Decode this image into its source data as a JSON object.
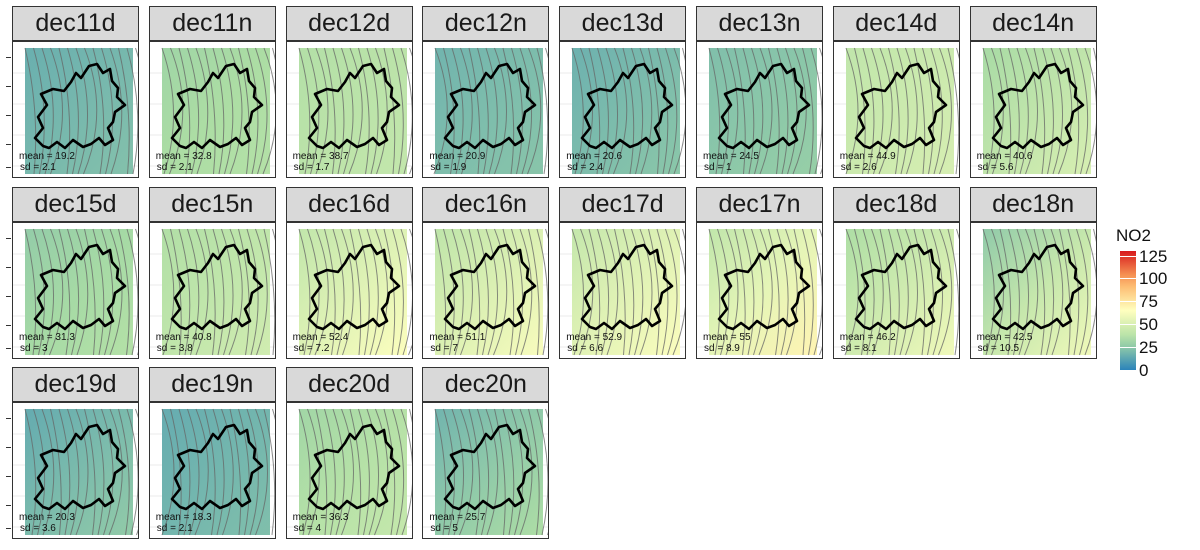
{
  "chart_data": {
    "type": "heatmap",
    "description_level": "faceted contour maps",
    "facets": [
      {
        "label": "dec11d",
        "mean": "mean = 19.2",
        "sd": "sd = 2.1",
        "avg": 19.2
      },
      {
        "label": "dec11n",
        "mean": "mean = 32.8",
        "sd": "sd = 2.1",
        "avg": 32.8
      },
      {
        "label": "dec12d",
        "mean": "mean = 38.7",
        "sd": "sd = 1.7",
        "avg": 38.7
      },
      {
        "label": "dec12n",
        "mean": "mean = 20.9",
        "sd": "sd = 1.9",
        "avg": 20.9
      },
      {
        "label": "dec13d",
        "mean": "mean = 20.6",
        "sd": "sd = 2.4",
        "avg": 20.6
      },
      {
        "label": "dec13n",
        "mean": "mean = 24.5",
        "sd": "sd = 1",
        "avg": 24.5
      },
      {
        "label": "dec14d",
        "mean": "mean = 44.9",
        "sd": "sd = 2.6",
        "avg": 44.9
      },
      {
        "label": "dec14n",
        "mean": "mean = 40.6",
        "sd": "sd = 5.6",
        "avg": 40.6
      },
      {
        "label": "dec15d",
        "mean": "mean = 31.3",
        "sd": "sd = 3",
        "avg": 31.3
      },
      {
        "label": "dec15n",
        "mean": "mean = 40.8",
        "sd": "sd = 3.8",
        "avg": 40.8
      },
      {
        "label": "dec16d",
        "mean": "mean = 52.4",
        "sd": "sd = 7.2",
        "avg": 52.4
      },
      {
        "label": "dec16n",
        "mean": "mean = 51.1",
        "sd": "sd = 7",
        "avg": 51.1
      },
      {
        "label": "dec17d",
        "mean": "mean = 52.9",
        "sd": "sd = 6.6",
        "avg": 52.9
      },
      {
        "label": "dec17n",
        "mean": "mean = 55",
        "sd": "sd = 8.9",
        "avg": 55
      },
      {
        "label": "dec18d",
        "mean": "mean = 46.2",
        "sd": "sd = 8.1",
        "avg": 46.2
      },
      {
        "label": "dec18n",
        "mean": "mean = 42.5",
        "sd": "sd = 10.5",
        "avg": 42.5
      },
      {
        "label": "dec19d",
        "mean": "mean = 20.3",
        "sd": "sd = 3.6",
        "avg": 20.3
      },
      {
        "label": "dec19n",
        "mean": "mean = 18.3",
        "sd": "sd = 2.1",
        "avg": 18.3
      },
      {
        "label": "dec20d",
        "mean": "mean = 36.3",
        "sd": "sd = 4",
        "avg": 36.3
      },
      {
        "label": "dec20n",
        "mean": "mean = 25.7",
        "sd": "sd = 5",
        "avg": 25.7
      }
    ],
    "columns": 8,
    "legend": {
      "title": "NO2",
      "ticks": [
        125,
        100,
        75,
        50,
        25,
        0
      ],
      "range": [
        0,
        130
      ],
      "position": "right",
      "colors": [
        "#2b83ba",
        "#abdda4",
        "#ffffbf",
        "#fdae61",
        "#d7191c"
      ]
    }
  }
}
